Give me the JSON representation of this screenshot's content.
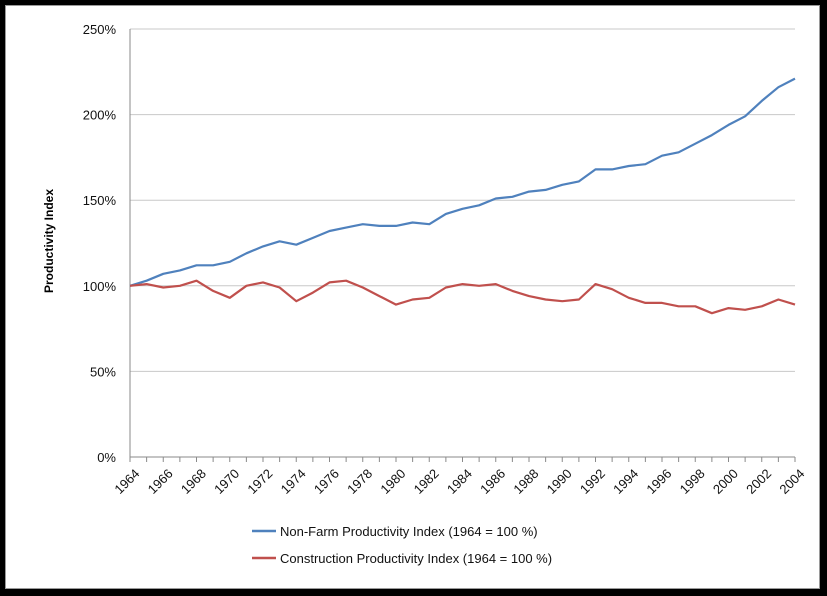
{
  "chart_data": {
    "type": "line",
    "title": "",
    "xlabel": "",
    "ylabel": "Productivity Index",
    "ylim": [
      0,
      250
    ],
    "y_ticks": [
      "0%",
      "50%",
      "100%",
      "150%",
      "200%",
      "250%"
    ],
    "grid": true,
    "legend_position": "bottom",
    "x": [
      1964,
      1965,
      1966,
      1967,
      1968,
      1969,
      1970,
      1971,
      1972,
      1973,
      1974,
      1975,
      1976,
      1977,
      1978,
      1979,
      1980,
      1981,
      1982,
      1983,
      1984,
      1985,
      1986,
      1987,
      1988,
      1989,
      1990,
      1991,
      1992,
      1993,
      1994,
      1995,
      1996,
      1997,
      1998,
      1999,
      2000,
      2001,
      2002,
      2003,
      2004
    ],
    "x_tick_labels": [
      "1964",
      "1966",
      "1968",
      "1970",
      "1972",
      "1974",
      "1976",
      "1978",
      "1980",
      "1982",
      "1984",
      "1986",
      "1988",
      "1990",
      "1992",
      "1994",
      "1996",
      "1998",
      "2000",
      "2002",
      "2004"
    ],
    "series": [
      {
        "name": "Non-Farm Productivity Index (1964 = 100 %)",
        "color": "#4f81bd",
        "values": [
          100,
          103,
          107,
          109,
          112,
          112,
          114,
          119,
          123,
          126,
          124,
          128,
          132,
          134,
          136,
          135,
          135,
          137,
          136,
          142,
          145,
          147,
          151,
          152,
          155,
          156,
          159,
          161,
          168,
          168,
          170,
          171,
          176,
          178,
          183,
          188,
          194,
          199,
          208,
          216,
          221
        ]
      },
      {
        "name": "Construction Productivity Index (1964 = 100 %)",
        "color": "#c0504d",
        "values": [
          100,
          101,
          99,
          100,
          103,
          97,
          93,
          100,
          102,
          99,
          91,
          96,
          102,
          103,
          99,
          94,
          89,
          92,
          93,
          99,
          101,
          100,
          101,
          97,
          94,
          92,
          91,
          92,
          101,
          98,
          93,
          90,
          90,
          88,
          88,
          84,
          87,
          86,
          88,
          92,
          89
        ]
      }
    ]
  }
}
